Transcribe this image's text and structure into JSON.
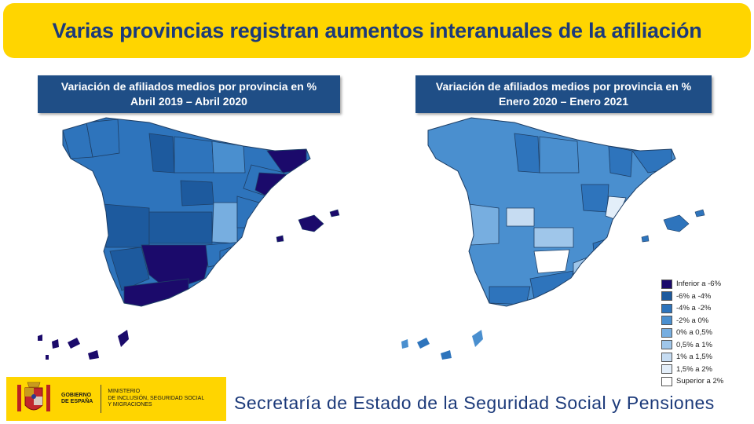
{
  "banner": {
    "title": "Varias provincias registran aumentos interanuales de la afiliación"
  },
  "maps": [
    {
      "title_line1": "Variación de afiliados medios por provincia en %",
      "title_line2": "Abril 2019 – Abril 2020"
    },
    {
      "title_line1": "Variación de afiliados medios por provincia en %",
      "title_line2": "Enero 2020 – Enero 2021"
    }
  ],
  "legend": [
    {
      "label": "Inferior a -6%",
      "color": "#1b0a6b"
    },
    {
      "label": "-6% a -4%",
      "color": "#1d5a9e"
    },
    {
      "label": "-4% a -2%",
      "color": "#2e74bc"
    },
    {
      "label": "-2% a 0%",
      "color": "#4a8fcf"
    },
    {
      "label": "0% a 0,5%",
      "color": "#77aee0"
    },
    {
      "label": "0,5% a 1%",
      "color": "#9fc6ea"
    },
    {
      "label": "1% a 1,5%",
      "color": "#c6dcf2"
    },
    {
      "label": "1,5% a 2%",
      "color": "#e3eef9"
    },
    {
      "label": "Superior a 2%",
      "color": "#ffffff"
    }
  ],
  "footer": {
    "gov_line1": "GOBIERNO",
    "gov_line2": "DE ESPAÑA",
    "ministry_line1": "MINISTERIO",
    "ministry_line2": "DE INCLUSIÓN, SEGURIDAD SOCIAL",
    "ministry_line3": "Y MIGRACIONES",
    "secretariat": "Secretaría de Estado de la Seguridad Social y Pensiones"
  },
  "colors": {
    "banner": "#ffd500",
    "title_bg": "#1f4e86",
    "text_blue": "#1c3a7a"
  }
}
